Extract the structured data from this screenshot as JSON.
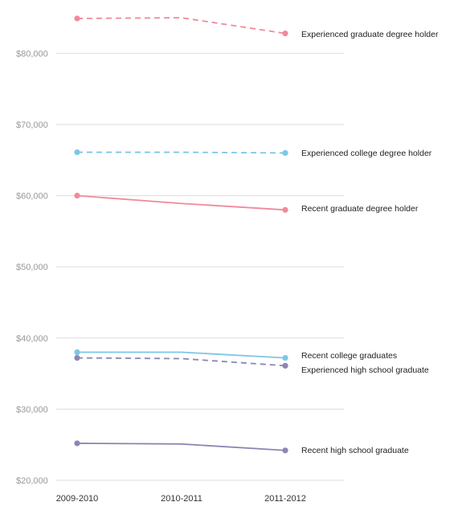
{
  "chart_data": {
    "type": "line",
    "title": "",
    "xlabel": "",
    "ylabel": "",
    "x": [
      "2009-2010",
      "2010-2011",
      "2011-2012"
    ],
    "ylim": [
      20000,
      87000
    ],
    "yticks": [
      20000,
      30000,
      40000,
      50000,
      60000,
      70000,
      80000
    ],
    "ytick_labels": [
      "$20,000",
      "$30,000",
      "$40,000",
      "$50,000",
      "$60,000",
      "$70,000",
      "$80,000"
    ],
    "grid": true,
    "legend": "inline labels at line ends",
    "series": [
      {
        "name": "Experienced graduate degree holder",
        "values": [
          84900,
          85000,
          82800
        ],
        "color": "#f08a9b",
        "dashed": true
      },
      {
        "name": "Experienced college degree holder",
        "values": [
          66100,
          66100,
          66000
        ],
        "color": "#7ec6e6",
        "dashed": true
      },
      {
        "name": "Recent graduate degree holder",
        "values": [
          60000,
          58900,
          58000
        ],
        "color": "#f08a9b",
        "dashed": false
      },
      {
        "name": "Recent college graduates",
        "values": [
          38000,
          38000,
          37200
        ],
        "color": "#7ec6e6",
        "dashed": false
      },
      {
        "name": "Experienced high school graduate",
        "values": [
          37200,
          37100,
          36100
        ],
        "color": "#8d86b4",
        "dashed": true
      },
      {
        "name": "Recent high school graduate",
        "values": [
          25200,
          25100,
          24200
        ],
        "color": "#8d86b4",
        "dashed": false
      }
    ]
  }
}
